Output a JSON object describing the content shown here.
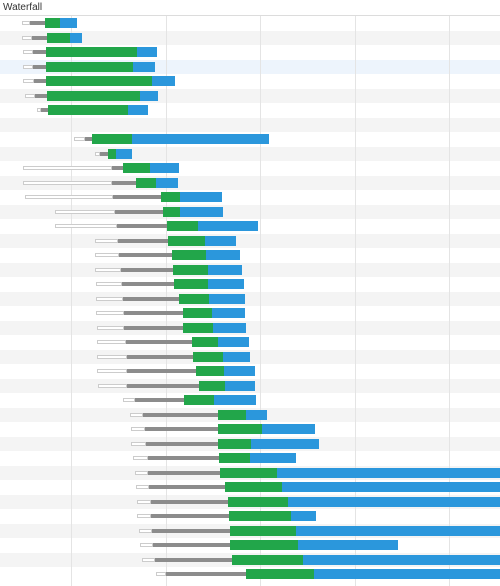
{
  "panel": {
    "title": "Waterfall"
  },
  "colors": {
    "queued_fill": "#ffffff",
    "queued_border": "#cccccc",
    "stalled": "#8c8c8c",
    "waiting": "#22a64a",
    "content_download": "#2b97dc",
    "row_stripe": "#f4f4f4",
    "row_highlight": "#edf4fc",
    "gridline": "#e4e4e4"
  },
  "chart_data": {
    "type": "bar",
    "orientation": "horizontal-stacked-timeline",
    "x_range": [
      0,
      500
    ],
    "gridlines_x": [
      71,
      166,
      260,
      355,
      449
    ],
    "grid": true,
    "segment_order": [
      "queued",
      "stalled",
      "waiting",
      "content_download"
    ],
    "rows": [
      {
        "highlight": false,
        "queued": [
          22,
          30
        ],
        "stalled": [
          30,
          45
        ],
        "waiting": [
          45,
          60
        ],
        "download": [
          60,
          77
        ]
      },
      {
        "highlight": false,
        "queued": [
          22,
          32
        ],
        "stalled": [
          32,
          47
        ],
        "waiting": [
          47,
          70
        ],
        "download": [
          70,
          82
        ]
      },
      {
        "highlight": false,
        "queued": [
          23,
          33
        ],
        "stalled": [
          33,
          46
        ],
        "waiting": [
          46,
          137
        ],
        "download": [
          137,
          157
        ]
      },
      {
        "highlight": true,
        "queued": [
          23,
          33
        ],
        "stalled": [
          33,
          46
        ],
        "waiting": [
          46,
          133
        ],
        "download": [
          133,
          155
        ]
      },
      {
        "highlight": false,
        "queued": [
          23,
          34
        ],
        "stalled": [
          34,
          46
        ],
        "waiting": [
          46,
          152
        ],
        "download": [
          152,
          175
        ]
      },
      {
        "highlight": false,
        "queued": [
          25,
          35
        ],
        "stalled": [
          35,
          47
        ],
        "waiting": [
          47,
          140
        ],
        "download": [
          140,
          158
        ]
      },
      {
        "highlight": false,
        "queued": [
          37,
          41
        ],
        "stalled": [
          41,
          48
        ],
        "waiting": [
          48,
          128
        ],
        "download": [
          128,
          148
        ]
      },
      null,
      {
        "highlight": false,
        "queued": [
          74,
          85
        ],
        "stalled": [
          85,
          92
        ],
        "waiting": [
          92,
          132
        ],
        "download": [
          132,
          269
        ]
      },
      {
        "highlight": false,
        "queued": [
          95,
          100
        ],
        "stalled": [
          100,
          108
        ],
        "waiting": [
          108,
          116
        ],
        "download": [
          116,
          132
        ]
      },
      {
        "highlight": false,
        "queued": [
          23,
          112
        ],
        "stalled": [
          112,
          123
        ],
        "waiting": [
          123,
          150
        ],
        "download": [
          150,
          179
        ]
      },
      {
        "highlight": false,
        "queued": [
          23,
          112
        ],
        "stalled": [
          112,
          136
        ],
        "waiting": [
          136,
          156
        ],
        "download": [
          156,
          178
        ]
      },
      {
        "highlight": false,
        "queued": [
          25,
          113
        ],
        "stalled": [
          113,
          161
        ],
        "waiting": [
          161,
          180
        ],
        "download": [
          180,
          222
        ]
      },
      {
        "highlight": false,
        "queued": [
          55,
          115
        ],
        "stalled": [
          115,
          163
        ],
        "waiting": [
          163,
          180
        ],
        "download": [
          180,
          223
        ]
      },
      {
        "highlight": false,
        "queued": [
          55,
          117
        ],
        "stalled": [
          117,
          167
        ],
        "waiting": [
          167,
          198
        ],
        "download": [
          198,
          258
        ]
      },
      {
        "highlight": false,
        "queued": [
          95,
          118
        ],
        "stalled": [
          118,
          168
        ],
        "waiting": [
          168,
          205
        ],
        "download": [
          205,
          236
        ]
      },
      {
        "highlight": false,
        "queued": [
          95,
          119
        ],
        "stalled": [
          119,
          172
        ],
        "waiting": [
          172,
          206
        ],
        "download": [
          206,
          240
        ]
      },
      {
        "highlight": false,
        "queued": [
          95,
          121
        ],
        "stalled": [
          121,
          173
        ],
        "waiting": [
          173,
          208
        ],
        "download": [
          208,
          242
        ]
      },
      {
        "highlight": false,
        "queued": [
          96,
          122
        ],
        "stalled": [
          122,
          174
        ],
        "waiting": [
          174,
          208
        ],
        "download": [
          208,
          244
        ]
      },
      {
        "highlight": false,
        "queued": [
          96,
          123
        ],
        "stalled": [
          123,
          179
        ],
        "waiting": [
          179,
          209
        ],
        "download": [
          209,
          245
        ]
      },
      {
        "highlight": false,
        "queued": [
          96,
          124
        ],
        "stalled": [
          124,
          183
        ],
        "waiting": [
          183,
          212
        ],
        "download": [
          212,
          245
        ]
      },
      {
        "highlight": false,
        "queued": [
          97,
          124
        ],
        "stalled": [
          124,
          183
        ],
        "waiting": [
          183,
          213
        ],
        "download": [
          213,
          246
        ]
      },
      {
        "highlight": false,
        "queued": [
          97,
          126
        ],
        "stalled": [
          126,
          192
        ],
        "waiting": [
          192,
          218
        ],
        "download": [
          218,
          249
        ]
      },
      {
        "highlight": false,
        "queued": [
          97,
          127
        ],
        "stalled": [
          127,
          193
        ],
        "waiting": [
          193,
          223
        ],
        "download": [
          223,
          250
        ]
      },
      {
        "highlight": false,
        "queued": [
          97,
          127
        ],
        "stalled": [
          127,
          196
        ],
        "waiting": [
          196,
          224
        ],
        "download": [
          224,
          255
        ]
      },
      {
        "highlight": false,
        "queued": [
          98,
          127
        ],
        "stalled": [
          127,
          199
        ],
        "waiting": [
          199,
          225
        ],
        "download": [
          225,
          255
        ]
      },
      {
        "highlight": false,
        "queued": [
          123,
          135
        ],
        "stalled": [
          135,
          184
        ],
        "waiting": [
          184,
          214
        ],
        "download": [
          214,
          256
        ]
      },
      {
        "highlight": false,
        "queued": [
          130,
          143
        ],
        "stalled": [
          143,
          218
        ],
        "waiting": [
          218,
          246
        ],
        "download": [
          246,
          267
        ]
      },
      {
        "highlight": false,
        "queued": [
          131,
          145
        ],
        "stalled": [
          145,
          218
        ],
        "waiting": [
          218,
          262
        ],
        "download": [
          262,
          315
        ]
      },
      {
        "highlight": false,
        "queued": [
          131,
          146
        ],
        "stalled": [
          146,
          218
        ],
        "waiting": [
          218,
          251
        ],
        "download": [
          251,
          319
        ]
      },
      {
        "highlight": false,
        "queued": [
          133,
          148
        ],
        "stalled": [
          148,
          219
        ],
        "waiting": [
          219,
          250
        ],
        "download": [
          250,
          296
        ]
      },
      {
        "highlight": false,
        "queued": [
          135,
          148
        ],
        "stalled": [
          148,
          220
        ],
        "waiting": [
          220,
          277
        ],
        "download": [
          277,
          500
        ]
      },
      {
        "highlight": false,
        "queued": [
          136,
          149
        ],
        "stalled": [
          149,
          225
        ],
        "waiting": [
          225,
          282
        ],
        "download": [
          282,
          500
        ]
      },
      {
        "highlight": false,
        "queued": [
          137,
          151
        ],
        "stalled": [
          151,
          228
        ],
        "waiting": [
          228,
          288
        ],
        "download": [
          288,
          500
        ]
      },
      {
        "highlight": false,
        "queued": [
          137,
          151
        ],
        "stalled": [
          151,
          229
        ],
        "waiting": [
          229,
          291
        ],
        "download": [
          291,
          316
        ]
      },
      {
        "highlight": false,
        "queued": [
          139,
          152
        ],
        "stalled": [
          152,
          230
        ],
        "waiting": [
          230,
          296
        ],
        "download": [
          296,
          500
        ]
      },
      {
        "highlight": false,
        "queued": [
          140,
          153
        ],
        "stalled": [
          153,
          230
        ],
        "waiting": [
          230,
          298
        ],
        "download": [
          298,
          398
        ]
      },
      {
        "highlight": false,
        "queued": [
          142,
          155
        ],
        "stalled": [
          155,
          232
        ],
        "waiting": [
          232,
          303
        ],
        "download": [
          303,
          500
        ]
      },
      {
        "highlight": false,
        "queued": [
          156,
          166
        ],
        "stalled": [
          166,
          246
        ],
        "waiting": [
          246,
          314
        ],
        "download": [
          314,
          500
        ]
      }
    ]
  }
}
